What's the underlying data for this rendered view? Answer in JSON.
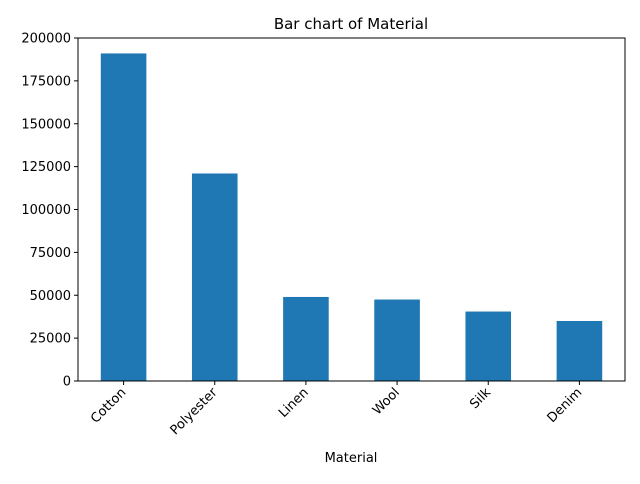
{
  "chart_data": {
    "type": "bar",
    "title": "Bar chart of Material",
    "xlabel": "Material",
    "ylabel": "",
    "categories": [
      "Cotton",
      "Polyester",
      "Linen",
      "Wool",
      "Silk",
      "Denim"
    ],
    "values": [
      191000,
      121000,
      49000,
      47500,
      40500,
      35000
    ],
    "ylim": [
      0,
      200000
    ],
    "yticks": [
      0,
      25000,
      50000,
      75000,
      100000,
      125000,
      150000,
      175000,
      200000
    ],
    "ytick_labels": [
      "0",
      "25000",
      "50000",
      "75000",
      "100000",
      "125000",
      "150000",
      "175000",
      "200000"
    ],
    "bar_color": "#1f77b4",
    "grid": false,
    "legend": "none"
  }
}
